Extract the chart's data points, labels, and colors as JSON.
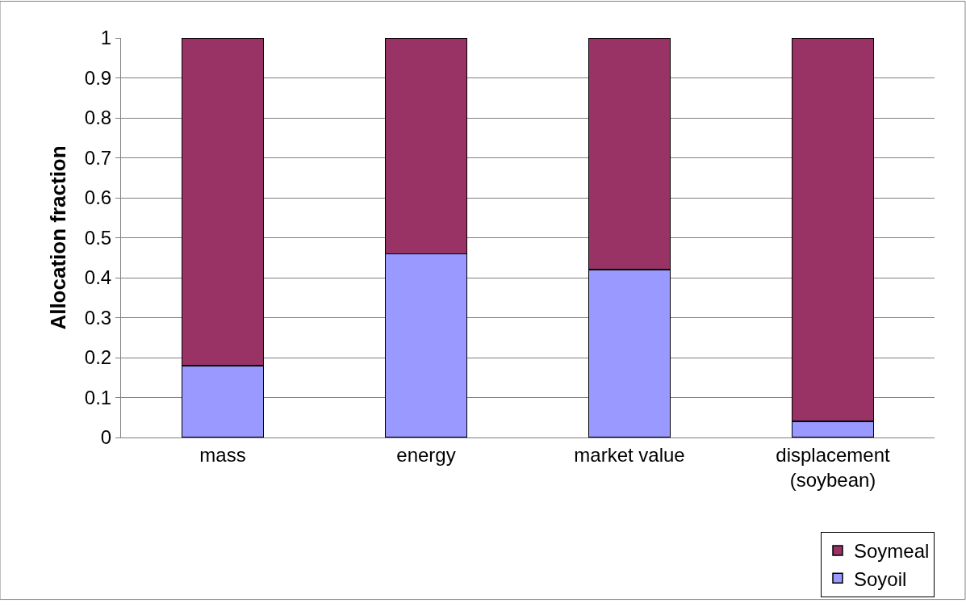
{
  "chart_data": {
    "type": "bar",
    "stacked": true,
    "ylabel": "Allocation fraction",
    "categories": [
      "mass",
      "energy",
      "market value",
      "displacement\n(soybean)"
    ],
    "series": [
      {
        "name": "Soyoil",
        "color": "#9999ff",
        "values": [
          0.18,
          0.46,
          0.42,
          0.04
        ]
      },
      {
        "name": "Soymeal",
        "color": "#993366",
        "values": [
          0.82,
          0.54,
          0.58,
          0.96
        ]
      }
    ],
    "ylim": [
      0,
      1
    ],
    "yticks": [
      0,
      0.1,
      0.2,
      0.3,
      0.4,
      0.5,
      0.6,
      0.7,
      0.8,
      0.9,
      1
    ],
    "grid": "y",
    "legend": "bottom right"
  }
}
